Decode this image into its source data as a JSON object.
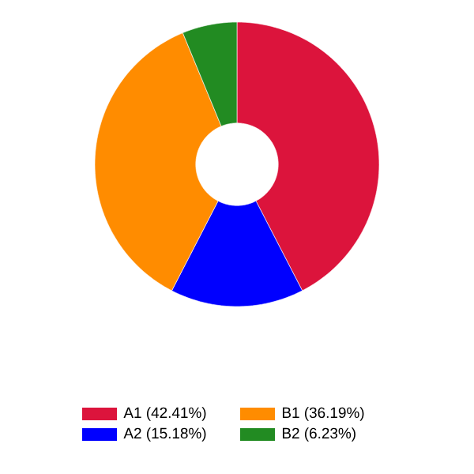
{
  "chart_data": {
    "type": "donut",
    "categories": [
      "A1 (42.41%)",
      "A2 (15.18%)",
      "B1 (36.19%)",
      "B2 (6.23%)"
    ],
    "values": [
      42.41,
      15.18,
      36.19,
      6.23
    ],
    "colors": [
      "#dc143c",
      "#0000ff",
      "#ff8c00",
      "#228b22"
    ],
    "legend": "bottom"
  }
}
